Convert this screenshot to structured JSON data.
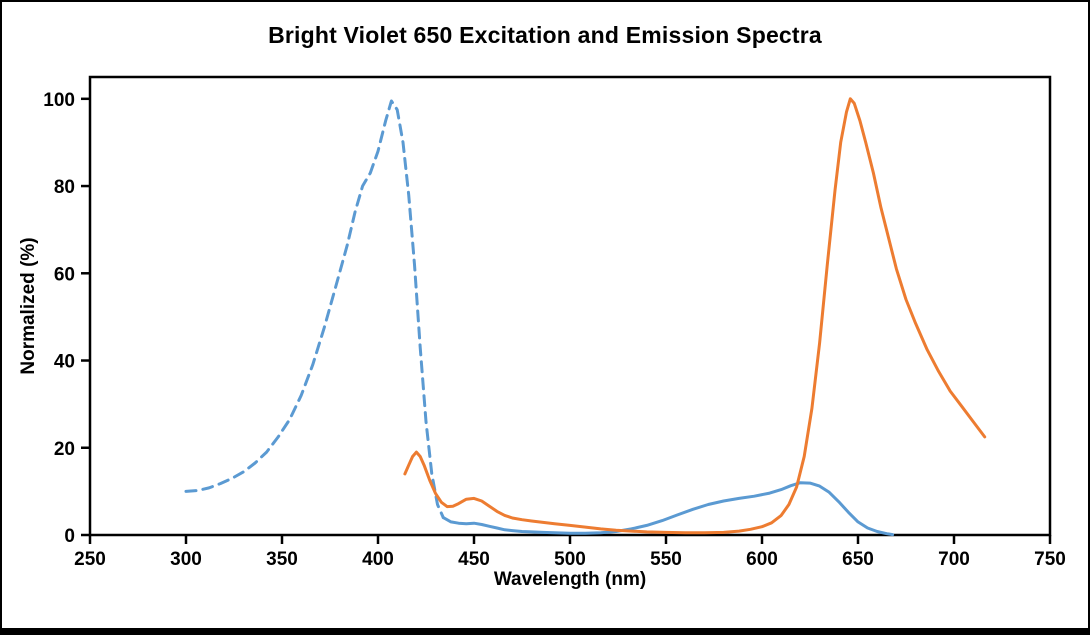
{
  "chart_data": {
    "type": "line",
    "title": "Bright Violet 650 Excitation and Emission Spectra",
    "xlabel": "Wavelength (nm)",
    "ylabel": "Normalized (%)",
    "xlim": [
      250,
      750
    ],
    "ylim": [
      0,
      105
    ],
    "x_ticks": [
      250,
      300,
      350,
      400,
      450,
      500,
      550,
      600,
      650,
      700,
      750
    ],
    "y_ticks": [
      0,
      20,
      40,
      60,
      80,
      100
    ],
    "grid": false,
    "legend_position": "none",
    "frame_color": "#000000",
    "line_width": 3,
    "series": [
      {
        "name": "excitation",
        "color": "#5b9ad2",
        "segments": [
          {
            "style": "dashed",
            "x": [
              300,
              306,
              312,
              318,
              324,
              330,
              336,
              342,
              348,
              354,
              360,
              366,
              372,
              378,
              384,
              388,
              392,
              396,
              400,
              404,
              407,
              410,
              413,
              416,
              419,
              422,
              425,
              428,
              431,
              434
            ],
            "y": [
              10,
              10.2,
              10.8,
              11.8,
              13,
              14.5,
              16.5,
              19,
              22.5,
              26.5,
              32,
              39,
              47.5,
              57,
              66.5,
              74,
              80,
              83,
              88,
              95,
              99.5,
              97.5,
              90,
              78,
              62,
              43,
              26,
              14,
              7,
              4
            ]
          },
          {
            "style": "solid",
            "x": [
              434,
              438,
              442,
              446,
              450,
              454,
              458,
              462,
              466,
              470,
              475,
              480,
              486,
              492,
              500,
              508,
              516,
              524,
              532,
              540,
              548,
              556,
              564,
              572,
              580,
              588,
              596,
              604,
              610,
              615,
              620,
              625,
              630,
              635,
              640,
              645,
              650,
              655,
              660,
              665,
              668
            ],
            "y": [
              4,
              3,
              2.7,
              2.6,
              2.7,
              2.4,
              2.0,
              1.6,
              1.2,
              1.0,
              0.8,
              0.7,
              0.6,
              0.5,
              0.4,
              0.4,
              0.5,
              0.8,
              1.4,
              2.2,
              3.3,
              4.6,
              5.9,
              7.0,
              7.8,
              8.4,
              8.9,
              9.6,
              10.4,
              11.3,
              12,
              11.9,
              11.2,
              9.8,
              7.6,
              5.2,
              3.0,
              1.6,
              0.8,
              0.3,
              0.1
            ]
          }
        ]
      },
      {
        "name": "emission",
        "color": "#ed7c31",
        "segments": [
          {
            "style": "solid",
            "x": [
              414,
              416,
              418,
              420,
              422,
              424,
              427,
              430,
              433,
              436,
              439,
              442,
              446,
              450,
              454,
              458,
              462,
              466,
              470,
              475,
              480,
              486,
              492,
              500,
              508,
              516,
              524,
              532,
              540,
              550,
              560,
              570,
              580,
              588,
              594,
              600,
              605,
              610,
              614,
              618,
              622,
              626,
              630,
              634,
              638,
              641,
              644,
              646,
              648,
              651,
              654,
              658,
              662,
              666,
              670,
              675,
              680,
              686,
              692,
              698,
              704,
              710,
              716
            ],
            "y": [
              14,
              16,
              18,
              19,
              18,
              16,
              12.5,
              9.5,
              7.5,
              6.5,
              6.6,
              7.2,
              8.2,
              8.4,
              7.8,
              6.6,
              5.4,
              4.5,
              3.9,
              3.5,
              3.2,
              2.9,
              2.6,
              2.2,
              1.8,
              1.4,
              1.1,
              0.9,
              0.7,
              0.6,
              0.5,
              0.5,
              0.6,
              0.9,
              1.3,
              1.9,
              2.8,
              4.5,
              7,
              11,
              18,
              29,
              44,
              62,
              79,
              90,
              97,
              100,
              99,
              95,
              90,
              83,
              75,
              68,
              61,
              54,
              48.5,
              42.5,
              37.5,
              33,
              29.5,
              26,
              22.5
            ]
          }
        ]
      }
    ]
  }
}
